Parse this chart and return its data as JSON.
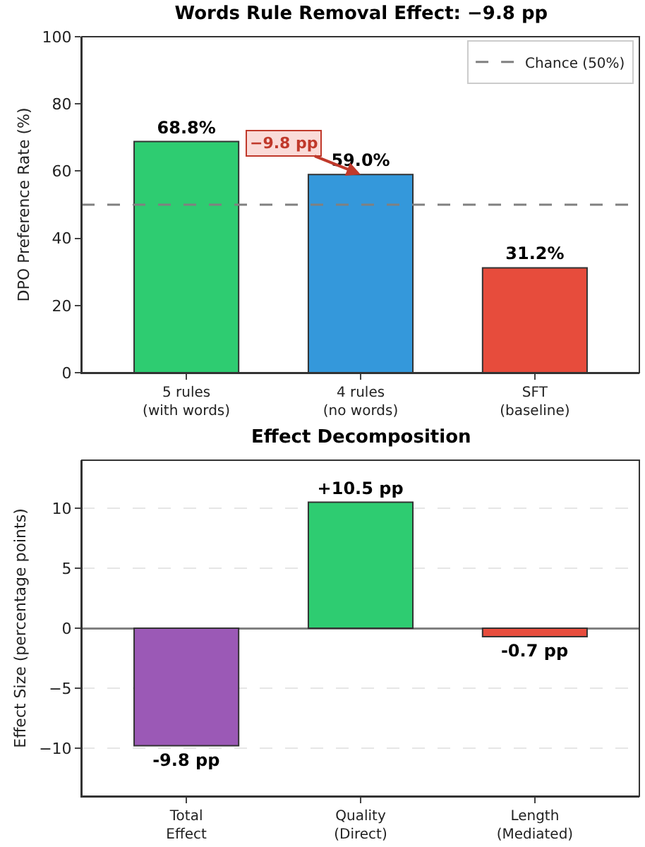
{
  "chart_data": [
    {
      "type": "bar",
      "title": "Words Rule Removal Effect: −9.8 pp",
      "ylabel": "DPO Preference Rate (%)",
      "categories": [
        "5 rules\n(with words)",
        "4 rules\n(no words)",
        "SFT\n(baseline)"
      ],
      "values": [
        68.8,
        59.0,
        31.2
      ],
      "colors": [
        "#2ecc71",
        "#3498db",
        "#e74c3c"
      ],
      "value_labels": [
        "68.8%",
        "59.0%",
        "31.2%"
      ],
      "ylim": [
        0,
        100
      ],
      "yticks": [
        0,
        20,
        40,
        60,
        80,
        100
      ],
      "grid": false,
      "legend": "top right",
      "ref_lines": [
        {
          "axis": "y",
          "value": 50,
          "label": "Chance (50%)",
          "color": "#808080",
          "line_style": "dashed"
        }
      ],
      "annotations": [
        {
          "text": "−9.8 pp",
          "x": "4 rules\n(no words)",
          "y": 59.0
        }
      ]
    },
    {
      "type": "bar",
      "title": "Effect Decomposition",
      "ylabel": "Effect Size (percentage points)",
      "categories": [
        "Total\nEffect",
        "Quality\n(Direct)",
        "Length\n(Mediated)"
      ],
      "values": [
        -9.8,
        10.5,
        -0.7
      ],
      "colors": [
        "#9b59b6",
        "#2ecc71",
        "#e74c3c"
      ],
      "value_labels": [
        "-9.8 pp",
        "+10.5 pp",
        "-0.7 pp"
      ],
      "ylim": [
        -14,
        14
      ],
      "yticks": [
        {
          "value": -10,
          "label": "−10"
        },
        {
          "value": -5,
          "label": "−5"
        },
        0,
        5,
        10
      ],
      "grid": "y"
    }
  ]
}
